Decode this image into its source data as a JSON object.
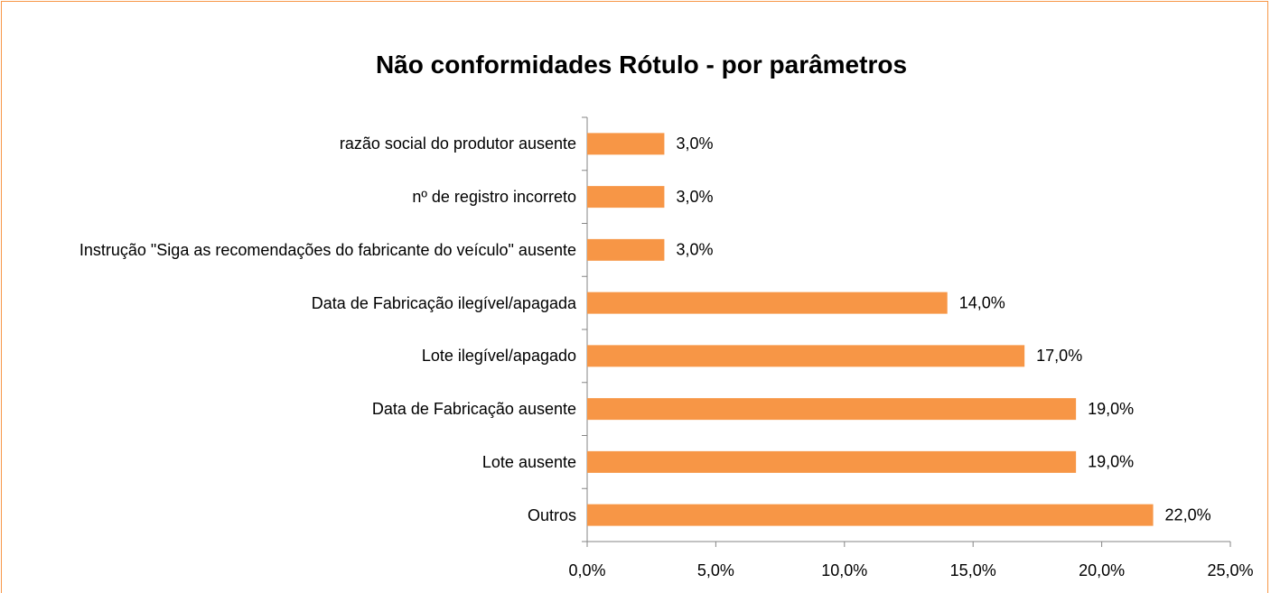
{
  "chart_data": {
    "type": "barh",
    "title": "Não conformidades Rótulo - por parâmetros",
    "categories": [
      "razão social do produtor ausente",
      "nº de registro incorreto",
      "Instrução \"Siga as recomendações do fabricante do veículo\" ausente",
      "Data de Fabricação ilegível/apagada",
      "Lote ilegível/apagado",
      "Data de Fabricação ausente",
      "Lote ausente",
      "Outros"
    ],
    "values": [
      3,
      3,
      3,
      14,
      17,
      19,
      19,
      22
    ],
    "value_labels": [
      "3,0%",
      "3,0%",
      "3,0%",
      "14,0%",
      "17,0%",
      "19,0%",
      "19,0%",
      "22,0%"
    ],
    "color": "#f79646",
    "xlim": [
      0,
      25
    ],
    "xticks": [
      {
        "value": 0,
        "label": "0,0%"
      },
      {
        "value": 5,
        "label": "5,0%"
      },
      {
        "value": 10,
        "label": "10,0%"
      },
      {
        "value": 15,
        "label": "15,0%"
      },
      {
        "value": 20,
        "label": "20,0%"
      },
      {
        "value": 25,
        "label": "25,0%"
      }
    ],
    "grid": false
  }
}
